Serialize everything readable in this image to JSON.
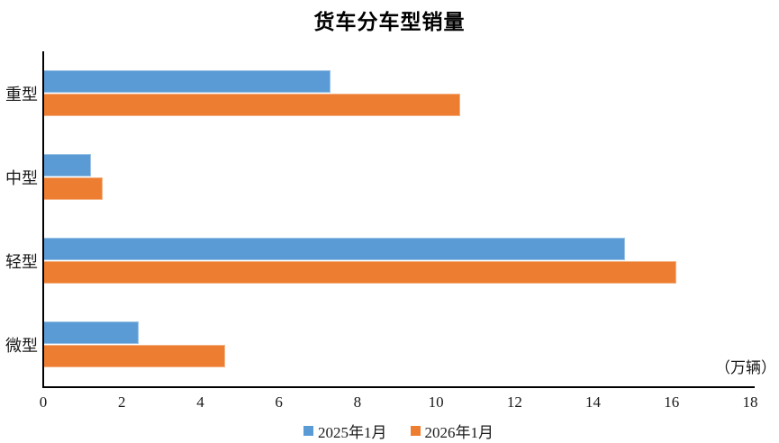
{
  "chart_data": {
    "type": "bar",
    "orientation": "horizontal",
    "title": "货车分车型销量",
    "unit_label": "（万辆）",
    "categories": [
      "重型",
      "中型",
      "轻型",
      "微型"
    ],
    "series": [
      {
        "name": "2025年1月",
        "color": "#5B9BD5",
        "edge_color": "#9CC2E5",
        "values": [
          7.3,
          1.2,
          14.8,
          2.4
        ]
      },
      {
        "name": "2026年1月",
        "color": "#ED7D31",
        "edge_color": "#F4B183",
        "values": [
          10.6,
          1.5,
          16.1,
          4.6
        ]
      }
    ],
    "xlim": [
      0,
      18
    ],
    "xticks": [
      0,
      2,
      4,
      6,
      8,
      10,
      12,
      14,
      16,
      18
    ],
    "grid": false,
    "legend_position": "bottom",
    "axis_color": "#000000",
    "text_color": "#1a1a1a"
  }
}
